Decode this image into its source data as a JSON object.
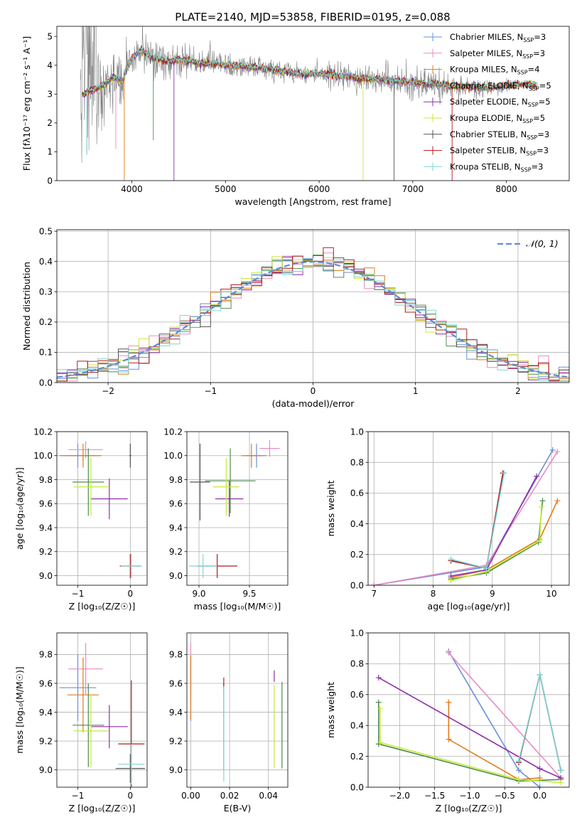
{
  "figure": {
    "title": "PLATE=2140, MJD=53858, FIBERID=0195, z=0.088"
  },
  "colors": {
    "Chabrier MILES": "#6a8fd8",
    "Salpeter MILES": "#e88bc4",
    "Kroupa MILES": "#e07b1a",
    "Chabrier ELODIE": "#4e8c4e",
    "Salpeter ELODIE": "#8e2fa8",
    "Kroupa ELODIE": "#c6ea3c",
    "Chabrier STELIB": "#555555",
    "Salpeter STELIB": "#b01c1c",
    "Kroupa STELIB": "#7fd6d6",
    "data": "#808080",
    "normal": "#5f8ad6"
  },
  "chart_data": [
    {
      "type": "line",
      "title": "PLATE=2140, MJD=53858, FIBERID=0195, z=0.088",
      "xlabel": "wavelength [Angstrom, rest frame]",
      "ylabel": "Flux [fλ10⁻¹⁷ erg cm⁻² s⁻¹ A⁻¹]",
      "xlim": [
        3200,
        8670
      ],
      "ylim": [
        0,
        5.35
      ],
      "xticks": [
        4000,
        5000,
        6000,
        7000,
        8000
      ],
      "yticks": [
        0,
        1,
        2,
        3,
        4,
        5
      ],
      "grid": false,
      "legend_position": "top-right",
      "legend": [
        {
          "label": "Chabrier MILES, N",
          "sub": "SSP",
          "suffix": "=3"
        },
        {
          "label": "Salpeter MILES, N",
          "sub": "SSP",
          "suffix": "=3"
        },
        {
          "label": "Kroupa MILES, N",
          "sub": "SSP",
          "suffix": "=4"
        },
        {
          "label": "Chabrier ELODIE, N",
          "sub": "SSP",
          "suffix": "=5"
        },
        {
          "label": "Salpeter ELODIE, N",
          "sub": "SSP",
          "suffix": "=5"
        },
        {
          "label": "Kroupa ELODIE, N",
          "sub": "SSP",
          "suffix": "=5"
        },
        {
          "label": "Chabrier STELIB, N",
          "sub": "SSP",
          "suffix": "=3"
        },
        {
          "label": "Salpeter STELIB, N",
          "sub": "SSP",
          "suffix": "=3"
        },
        {
          "label": "Kroupa STELIB, N",
          "sub": "SSP",
          "suffix": "=3"
        }
      ],
      "model_continuum": {
        "x": [
          3500,
          3550,
          3600,
          3700,
          3800,
          3900,
          3950,
          4000,
          4050,
          4100,
          4200,
          4300,
          4400,
          4500,
          4600,
          4700,
          4800,
          4900,
          5000,
          5200,
          5400,
          5600,
          5800,
          6000,
          6200,
          6400,
          6600,
          6800,
          7000,
          7200,
          7400,
          7600,
          7800,
          8000,
          8200,
          8300
        ],
        "y": [
          3.0,
          3.1,
          3.15,
          3.3,
          3.6,
          3.4,
          3.9,
          4.2,
          4.4,
          4.5,
          4.3,
          4.2,
          4.1,
          4.2,
          4.15,
          4.1,
          4.05,
          4.05,
          4.0,
          3.95,
          3.9,
          3.8,
          3.7,
          3.7,
          3.65,
          3.55,
          3.5,
          3.45,
          3.4,
          3.35,
          3.3,
          3.25,
          3.2,
          3.3,
          3.35,
          3.3
        ]
      },
      "data_noise_amplitude": {
        "x": [
          3500,
          3700,
          3900,
          4200,
          4600,
          5000,
          5500,
          6000,
          6500,
          7000,
          7500,
          8000,
          8300
        ],
        "y": [
          2.5,
          1.2,
          0.8,
          0.6,
          0.45,
          0.4,
          0.35,
          0.35,
          0.45,
          0.5,
          0.35,
          0.2,
          0.15
        ]
      }
    },
    {
      "type": "line",
      "xlabel": "(data-model)/error",
      "ylabel": "Normed distribution",
      "xlim": [
        -2.5,
        2.5
      ],
      "ylim": [
        0,
        0.505
      ],
      "xticks": [
        -2,
        -1,
        0,
        1,
        2
      ],
      "yticks": [
        0.0,
        0.1,
        0.2,
        0.3,
        0.4,
        0.5
      ],
      "grid": true,
      "legend_position": "top-right",
      "legend": [
        {
          "label": "𝒩(0, 1)"
        }
      ],
      "hist_bin_width": 0.1,
      "hist_note": "nine step histograms (one per model) scattered around the standard normal curve"
    },
    {
      "type": "scatter",
      "xlabel": "Z [log₁₀(Z/Z☉)]",
      "ylabel": "age  [log₁₀(age/yr)]",
      "xlim": [
        -1.4,
        0.32
      ],
      "ylim": [
        8.92,
        10.2
      ],
      "xticks": [
        -1,
        0
      ],
      "yticks": [
        9.0,
        9.2,
        9.4,
        9.6,
        9.8,
        10.0,
        10.2
      ],
      "grid": true,
      "points": [
        {
          "model": "Chabrier MILES",
          "x": -1.0,
          "y": 10.0,
          "xerr": 0.35,
          "yerr": 0.1
        },
        {
          "model": "Salpeter MILES",
          "x": -0.85,
          "y": 10.05,
          "xerr": 0.33,
          "yerr": 0.07
        },
        {
          "model": "Kroupa MILES",
          "x": -0.9,
          "y": 10.0,
          "xerr": 0.35,
          "yerr": 0.1
        },
        {
          "model": "Chabrier ELODIE",
          "x": -0.8,
          "y": 9.78,
          "xerr": 0.3,
          "yerr": 0.28
        },
        {
          "model": "Salpeter ELODIE",
          "x": -0.4,
          "y": 9.64,
          "xerr": 0.35,
          "yerr": 0.17
        },
        {
          "model": "Kroupa ELODIE",
          "x": -0.75,
          "y": 9.74,
          "xerr": 0.33,
          "yerr": 0.24
        },
        {
          "model": "Chabrier STELIB",
          "x": 0.0,
          "y": 10.0,
          "xerr": 0.02,
          "yerr": 0.1
        },
        {
          "model": "Salpeter STELIB",
          "x": 0.0,
          "y": 9.08,
          "xerr": 0.2,
          "yerr": 0.1
        },
        {
          "model": "Kroupa STELIB",
          "x": 0.02,
          "y": 9.08,
          "xerr": 0.2,
          "yerr": 0.1
        }
      ]
    },
    {
      "type": "scatter",
      "xlabel": "mass [log₁₀(M/M☉)]",
      "xlim": [
        8.88,
        9.88
      ],
      "ylim": [
        8.92,
        10.2
      ],
      "xticks": [
        9.0,
        9.5
      ],
      "yticks": [
        9.0,
        9.2,
        9.4,
        9.6,
        9.8,
        10.0,
        10.2
      ],
      "grid": true,
      "points": [
        {
          "model": "Chabrier MILES",
          "x": 9.57,
          "y": 10.0,
          "xerr": 0.1,
          "yerr": 0.1
        },
        {
          "model": "Salpeter MILES",
          "x": 9.7,
          "y": 10.06,
          "xerr": 0.1,
          "yerr": 0.07
        },
        {
          "model": "Kroupa MILES",
          "x": 9.52,
          "y": 10.0,
          "xerr": 0.1,
          "yerr": 0.1
        },
        {
          "model": "Chabrier ELODIE",
          "x": 9.31,
          "y": 9.79,
          "xerr": 0.25,
          "yerr": 0.27
        },
        {
          "model": "Salpeter ELODIE",
          "x": 9.3,
          "y": 9.64,
          "xerr": 0.14,
          "yerr": 0.15
        },
        {
          "model": "Kroupa ELODIE",
          "x": 9.27,
          "y": 9.74,
          "xerr": 0.13,
          "yerr": 0.24
        },
        {
          "model": "Chabrier STELIB",
          "x": 9.01,
          "y": 9.78,
          "xerr": 0.1,
          "yerr": 0.32
        },
        {
          "model": "Salpeter STELIB",
          "x": 9.18,
          "y": 9.08,
          "xerr": 0.2,
          "yerr": 0.1
        },
        {
          "model": "Kroupa STELIB",
          "x": 9.04,
          "y": 9.08,
          "xerr": 0.14,
          "yerr": 0.1
        }
      ]
    },
    {
      "type": "line",
      "xlabel": "age  [log₁₀(age/yr)]",
      "ylabel": "mass weight",
      "xlim": [
        6.9,
        10.3
      ],
      "ylim": [
        0,
        1.0
      ],
      "xticks": [
        7,
        8,
        9,
        10
      ],
      "yticks": [
        0.0,
        0.2,
        0.4,
        0.6,
        0.8,
        1.0
      ],
      "grid": true,
      "series": [
        {
          "model": "Chabrier MILES",
          "x": [
            7.0,
            8.9,
            10.02
          ],
          "y": [
            0.0,
            0.12,
            0.88
          ]
        },
        {
          "model": "Salpeter MILES",
          "x": [
            7.0,
            8.9,
            10.1
          ],
          "y": [
            0.0,
            0.13,
            0.87
          ]
        },
        {
          "model": "Kroupa MILES",
          "x": [
            8.3,
            8.9,
            9.8,
            10.1
          ],
          "y": [
            0.05,
            0.1,
            0.3,
            0.55
          ]
        },
        {
          "model": "Chabrier ELODIE",
          "x": [
            8.3,
            8.9,
            9.78,
            9.85
          ],
          "y": [
            0.04,
            0.08,
            0.28,
            0.55
          ]
        },
        {
          "model": "Salpeter ELODIE",
          "x": [
            8.3,
            8.9,
            9.75
          ],
          "y": [
            0.06,
            0.1,
            0.71
          ]
        },
        {
          "model": "Kroupa ELODIE",
          "x": [
            8.3,
            8.9,
            9.8,
            9.83
          ],
          "y": [
            0.03,
            0.09,
            0.29,
            0.51
          ]
        },
        {
          "model": "Chabrier STELIB",
          "x": [
            8.3,
            8.9,
            9.18
          ],
          "y": [
            0.16,
            0.11,
            0.73
          ]
        },
        {
          "model": "Salpeter STELIB",
          "x": [
            8.3,
            8.9,
            9.18
          ],
          "y": [
            0.16,
            0.11,
            0.73
          ]
        },
        {
          "model": "Kroupa STELIB",
          "x": [
            8.3,
            8.9,
            9.2
          ],
          "y": [
            0.17,
            0.11,
            0.73
          ]
        }
      ]
    },
    {
      "type": "scatter",
      "xlabel": "Z [log₁₀(Z/Z☉)]",
      "ylabel": "mass [log₁₀(M/M☉)]",
      "xlim": [
        -1.4,
        0.32
      ],
      "ylim": [
        8.88,
        9.95
      ],
      "xticks": [
        -1,
        0
      ],
      "yticks": [
        9.0,
        9.2,
        9.4,
        9.6,
        9.8
      ],
      "grid": true,
      "points": [
        {
          "model": "Chabrier MILES",
          "x": -1.0,
          "y": 9.57,
          "xerr": 0.35,
          "yerr": 0.23
        },
        {
          "model": "Salpeter MILES",
          "x": -0.85,
          "y": 9.7,
          "xerr": 0.33,
          "yerr": 0.18
        },
        {
          "model": "Kroupa MILES",
          "x": -0.9,
          "y": 9.52,
          "xerr": 0.3,
          "yerr": 0.26
        },
        {
          "model": "Chabrier ELODIE",
          "x": -0.8,
          "y": 9.31,
          "xerr": 0.3,
          "yerr": 0.29
        },
        {
          "model": "Salpeter ELODIE",
          "x": -0.4,
          "y": 9.3,
          "xerr": 0.35,
          "yerr": 0.15
        },
        {
          "model": "Kroupa ELODIE",
          "x": -0.75,
          "y": 9.27,
          "xerr": 0.33,
          "yerr": 0.25
        },
        {
          "model": "Chabrier STELIB",
          "x": 0.0,
          "y": 9.01,
          "xerr": 0.28,
          "yerr": 0.1
        },
        {
          "model": "Salpeter STELIB",
          "x": 0.02,
          "y": 9.18,
          "xerr": 0.25,
          "yerr": 0.44
        },
        {
          "model": "Kroupa STELIB",
          "x": 0.02,
          "y": 9.04,
          "xerr": 0.25,
          "yerr": 0.14
        }
      ]
    },
    {
      "type": "scatter",
      "xlabel": "E(B-V)",
      "xlim": [
        -0.002,
        0.05
      ],
      "ylim": [
        8.88,
        9.95
      ],
      "xticks": [
        0.0,
        0.02,
        0.04
      ],
      "yticks": [
        9.0,
        9.2,
        9.4,
        9.6,
        9.8
      ],
      "grid": true,
      "points": [
        {
          "model": "Chabrier MILES",
          "x": 0.0,
          "y": 9.57,
          "yerr": 0.23
        },
        {
          "model": "Salpeter MILES",
          "x": 0.0,
          "y": 9.7,
          "yerr": 0.18
        },
        {
          "model": "Kroupa MILES",
          "x": 0.0,
          "y": 9.57,
          "yerr": 0.22
        },
        {
          "model": "Chabrier ELODIE",
          "x": 0.047,
          "y": 9.31,
          "yerr": 0.3
        },
        {
          "model": "Salpeter ELODIE",
          "x": 0.043,
          "y": 9.65,
          "yerr": 0.04
        },
        {
          "model": "Kroupa ELODIE",
          "x": 0.043,
          "y": 9.3,
          "yerr": 0.29
        },
        {
          "model": "Chabrier STELIB",
          "x": 0.017,
          "y": 9.3,
          "yerr": 0.3
        },
        {
          "model": "Salpeter STELIB",
          "x": 0.017,
          "y": 9.6,
          "yerr": 0.04
        },
        {
          "model": "Kroupa STELIB",
          "x": 0.017,
          "y": 9.25,
          "yerr": 0.33
        }
      ]
    },
    {
      "type": "line",
      "xlabel": "Z [log₁₀(Z/Z☉)]",
      "ylabel": "mass weight",
      "xlim": [
        -2.45,
        0.42
      ],
      "ylim": [
        0,
        1.0
      ],
      "xticks": [
        -2.0,
        -1.5,
        -1.0,
        -0.5,
        0.0
      ],
      "yticks": [
        0.0,
        0.2,
        0.4,
        0.6,
        0.8,
        1.0
      ],
      "grid": true,
      "series": [
        {
          "model": "Chabrier MILES",
          "x": [
            -1.3,
            -0.3,
            0.0
          ],
          "y": [
            0.88,
            0.11,
            0.0
          ]
        },
        {
          "model": "Salpeter MILES",
          "x": [
            -1.3,
            0.3
          ],
          "y": [
            0.87,
            0.06
          ]
        },
        {
          "model": "Kroupa MILES",
          "x": [
            -1.3,
            -1.3,
            -0.3,
            0.0
          ],
          "y": [
            0.55,
            0.31,
            0.05,
            0.06
          ]
        },
        {
          "model": "Chabrier ELODIE",
          "x": [
            -2.3,
            -2.3,
            -0.3,
            0.3
          ],
          "y": [
            0.55,
            0.28,
            0.04,
            0.05
          ]
        },
        {
          "model": "Salpeter ELODIE",
          "x": [
            -2.3,
            0.0,
            0.3
          ],
          "y": [
            0.71,
            0.12,
            0.06
          ]
        },
        {
          "model": "Kroupa ELODIE",
          "x": [
            -2.28,
            -2.28,
            -0.3,
            0.3
          ],
          "y": [
            0.51,
            0.29,
            0.05,
            0.03
          ]
        },
        {
          "model": "Chabrier STELIB",
          "x": [
            -0.3,
            0.0,
            0.3
          ],
          "y": [
            0.16,
            0.73,
            0.11
          ]
        },
        {
          "model": "Salpeter STELIB",
          "x": [
            -0.3,
            0.0,
            0.3
          ],
          "y": [
            0.16,
            0.73,
            0.11
          ]
        },
        {
          "model": "Kroupa STELIB",
          "x": [
            -0.3,
            0.0,
            0.3
          ],
          "y": [
            0.17,
            0.73,
            0.11
          ]
        }
      ]
    }
  ]
}
